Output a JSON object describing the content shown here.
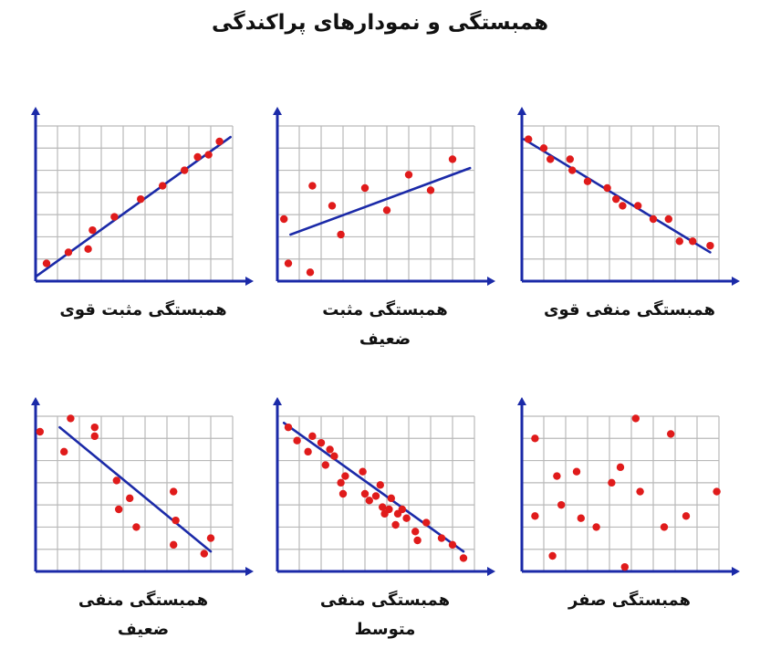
{
  "title": "همبستگی و نمودارهای پراکندگی",
  "colors": {
    "axis": "#1b2aa8",
    "grid": "#b9b9b9",
    "point": "#e01b1b",
    "line": "#1b2aa8"
  },
  "chart_data": [
    {
      "type": "scatter",
      "title": "همبستگی مثبت قوی",
      "xlim": [
        0,
        9
      ],
      "ylim": [
        0,
        7
      ],
      "grid": true,
      "x": [
        0.5,
        1.5,
        2.4,
        2.6,
        3.6,
        4.8,
        5.8,
        6.8,
        7.4,
        7.9,
        8.4
      ],
      "y": [
        0.8,
        1.3,
        1.45,
        2.3,
        2.9,
        3.7,
        4.3,
        5.0,
        5.6,
        5.7,
        6.3
      ],
      "trend": [
        [
          0,
          0.2
        ],
        [
          8.9,
          6.5
        ]
      ]
    },
    {
      "type": "scatter",
      "title": "همبستگی مثبت ضعیف",
      "xlim": [
        0,
        9
      ],
      "ylim": [
        0,
        7
      ],
      "grid": true,
      "x": [
        0.3,
        0.5,
        1.5,
        1.6,
        2.5,
        2.9,
        4.0,
        5.0,
        6.0,
        7.0,
        8.0
      ],
      "y": [
        2.8,
        0.8,
        0.4,
        4.3,
        3.4,
        2.1,
        4.2,
        3.2,
        4.8,
        4.1,
        5.5
      ],
      "trend": [
        [
          0.6,
          2.1
        ],
        [
          8.8,
          5.1
        ]
      ]
    },
    {
      "type": "scatter",
      "title": "همبستگی منفی قوی",
      "xlim": [
        0,
        9
      ],
      "ylim": [
        0,
        7
      ],
      "grid": true,
      "x": [
        0.3,
        1.0,
        1.3,
        2.2,
        2.3,
        3.0,
        3.9,
        4.3,
        4.6,
        5.3,
        6.0,
        6.7,
        7.2,
        7.8,
        8.6
      ],
      "y": [
        6.4,
        6.0,
        5.5,
        5.5,
        5.0,
        4.5,
        4.2,
        3.7,
        3.4,
        3.4,
        2.8,
        2.8,
        1.8,
        1.8,
        1.6
      ],
      "trend": [
        [
          0.1,
          6.4
        ],
        [
          8.6,
          1.3
        ]
      ]
    },
    {
      "type": "scatter",
      "title": "همبستگی منفی ضعیف",
      "xlim": [
        0,
        9
      ],
      "ylim": [
        0,
        7
      ],
      "grid": true,
      "x": [
        0.2,
        1.3,
        1.6,
        2.7,
        2.7,
        3.7,
        3.8,
        4.3,
        4.6,
        6.3,
        6.4,
        6.3,
        7.7,
        8.0
      ],
      "y": [
        6.3,
        5.4,
        6.9,
        6.5,
        6.1,
        4.1,
        2.8,
        3.3,
        2.0,
        1.2,
        2.3,
        3.6,
        0.8,
        1.5
      ],
      "trend": [
        [
          1.1,
          6.5
        ],
        [
          8.0,
          0.9
        ]
      ]
    },
    {
      "type": "scatter",
      "title": "همبستگی منفی متوسط",
      "xlim": [
        0,
        9
      ],
      "ylim": [
        0,
        7
      ],
      "grid": true,
      "x": [
        0.5,
        0.9,
        1.4,
        1.6,
        2.0,
        2.2,
        2.4,
        2.6,
        2.9,
        3.0,
        3.1,
        3.9,
        4.0,
        4.2,
        4.5,
        4.7,
        4.8,
        4.9,
        5.1,
        5.2,
        5.4,
        5.5,
        5.7,
        5.9,
        6.3,
        6.4,
        6.8,
        7.5,
        8.0,
        8.5
      ],
      "y": [
        6.5,
        5.9,
        5.4,
        6.1,
        5.8,
        4.8,
        5.5,
        5.2,
        4.0,
        3.5,
        4.3,
        4.5,
        3.5,
        3.2,
        3.4,
        3.9,
        2.9,
        2.6,
        2.8,
        3.3,
        2.1,
        2.6,
        2.8,
        2.4,
        1.8,
        1.4,
        2.2,
        1.5,
        1.2,
        0.6
      ],
      "trend": [
        [
          0.3,
          6.7
        ],
        [
          8.5,
          0.9
        ]
      ]
    },
    {
      "type": "scatter",
      "title": "همبستگی صفر",
      "xlim": [
        0,
        9
      ],
      "ylim": [
        0,
        7
      ],
      "grid": true,
      "x": [
        0.6,
        0.6,
        1.4,
        1.6,
        1.8,
        2.5,
        2.7,
        3.4,
        4.1,
        4.5,
        4.7,
        5.2,
        5.4,
        6.5,
        6.8,
        7.5,
        8.9
      ],
      "y": [
        6.0,
        2.5,
        0.7,
        4.3,
        3.0,
        4.5,
        2.4,
        2.0,
        4.0,
        4.7,
        0.2,
        6.9,
        3.6,
        2.0,
        6.2,
        2.5,
        3.6
      ],
      "trend": []
    }
  ]
}
